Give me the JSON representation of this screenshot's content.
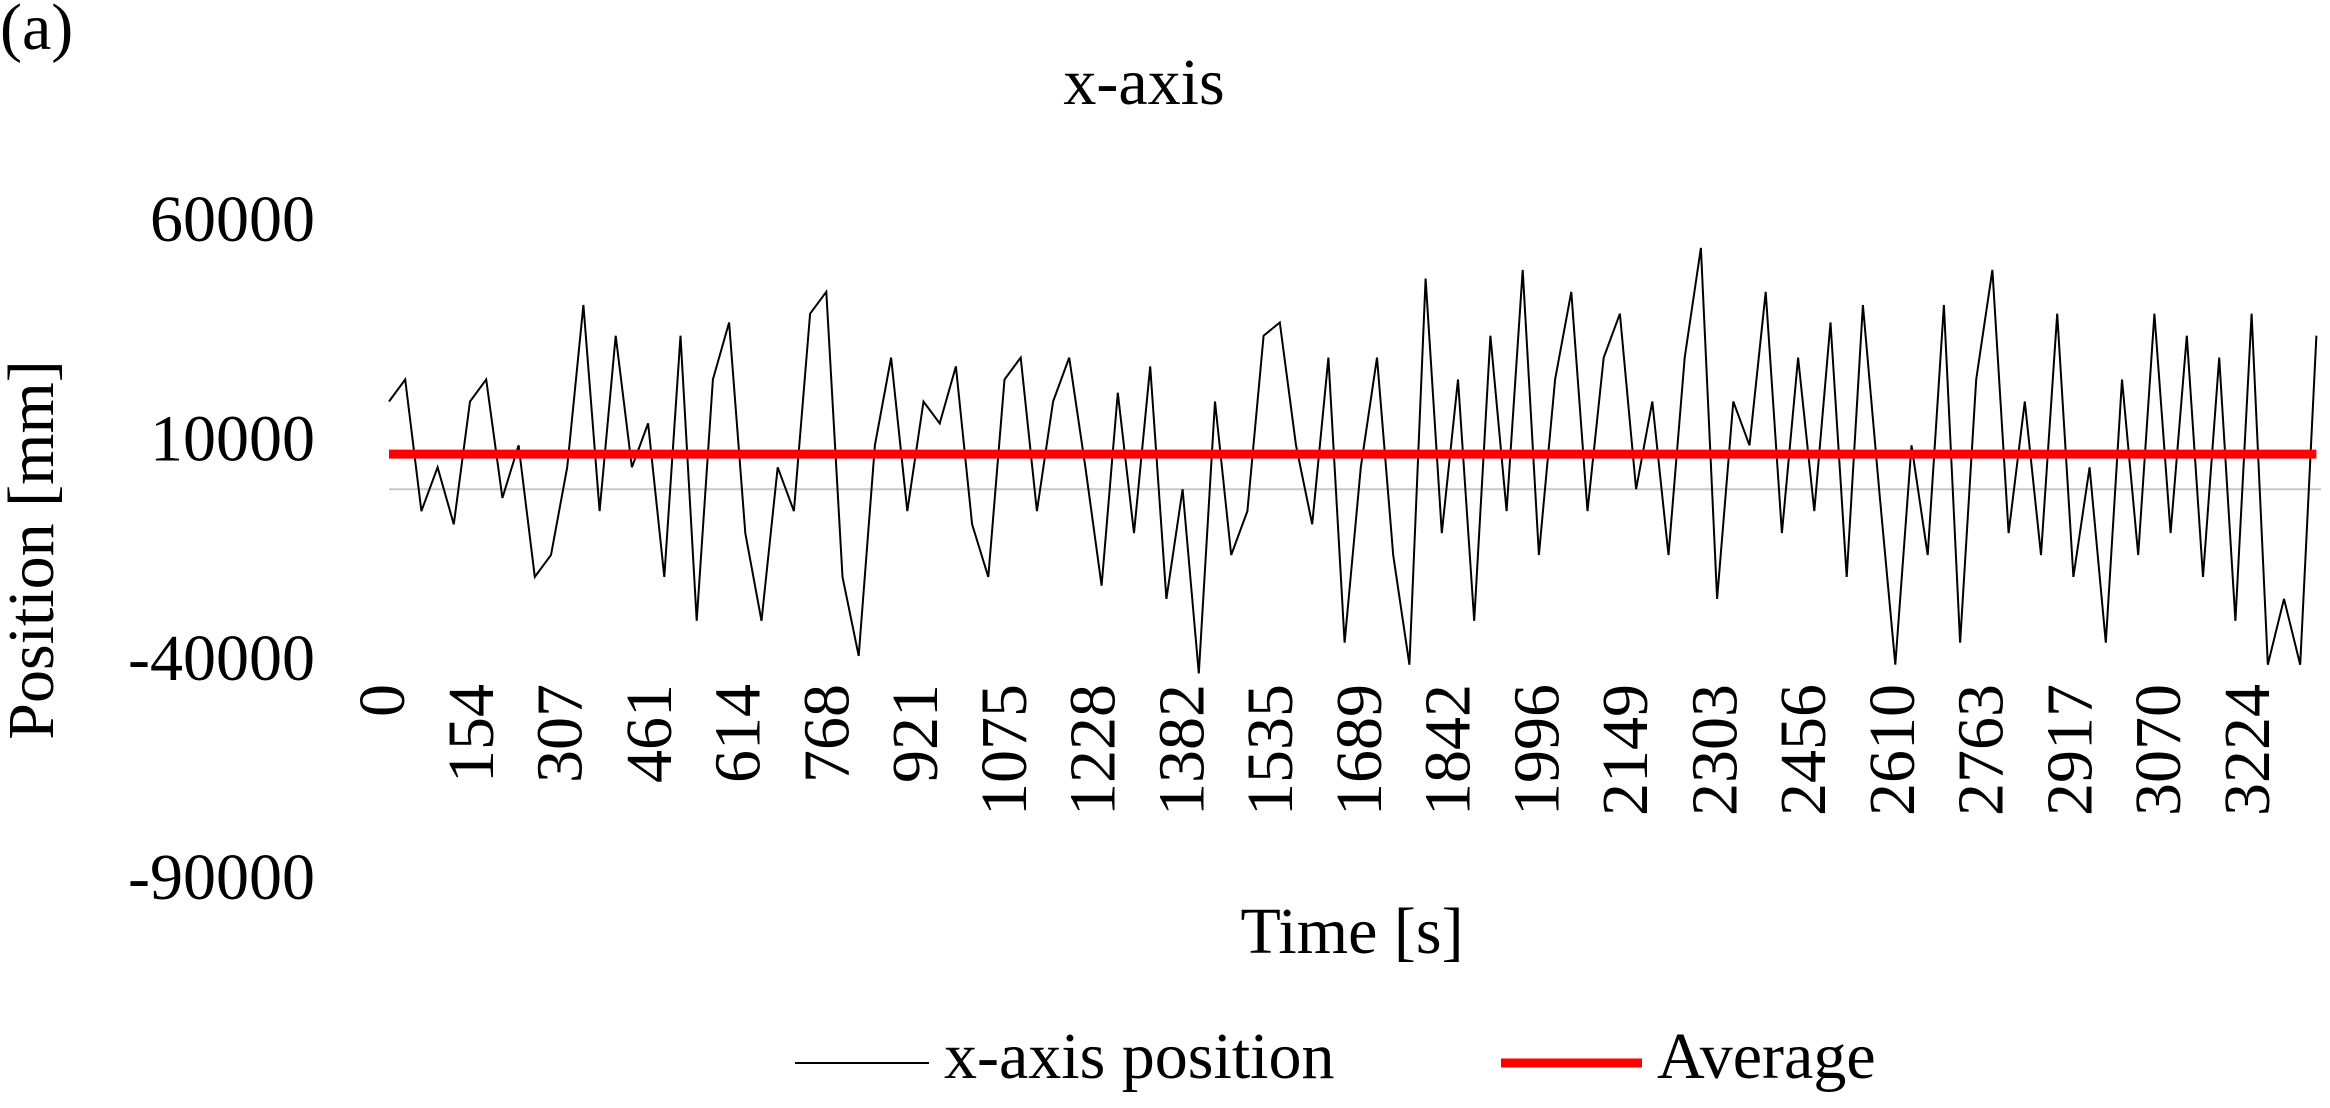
{
  "chart_data": {
    "type": "line",
    "panel_label": "(a)",
    "title": "x-axis",
    "xlabel": "Time [s]",
    "ylabel": "Position [mm]",
    "x": [
      0,
      28,
      56,
      84,
      112,
      140,
      168,
      196,
      224,
      252,
      280,
      308,
      336,
      364,
      392,
      420,
      448,
      476,
      504,
      532,
      560,
      588,
      616,
      644,
      672,
      700,
      728,
      756,
      784,
      812,
      840,
      868,
      896,
      924,
      952,
      980,
      1008,
      1036,
      1064,
      1092,
      1120,
      1148,
      1176,
      1204,
      1232,
      1260,
      1288,
      1316,
      1344,
      1372,
      1400,
      1428,
      1456,
      1484,
      1512,
      1540,
      1568,
      1596,
      1624,
      1652,
      1680,
      1708,
      1736,
      1764,
      1792,
      1820,
      1848,
      1876,
      1904,
      1932,
      1960,
      1988,
      2016,
      2044,
      2072,
      2100,
      2128,
      2156,
      2184,
      2212,
      2240,
      2268,
      2296,
      2324,
      2352,
      2380,
      2408,
      2436,
      2464,
      2492,
      2520,
      2548,
      2576,
      2604,
      2632,
      2660,
      2688,
      2716,
      2744,
      2772,
      2800,
      2828,
      2856,
      2884,
      2912,
      2940,
      2968,
      2996,
      3024,
      3052,
      3080,
      3108,
      3136,
      3164,
      3192,
      3220,
      3248,
      3276,
      3304,
      3332
    ],
    "series": [
      {
        "name": "x-axis position",
        "color": "#000000",
        "values": [
          20000,
          25000,
          -5000,
          5000,
          -8000,
          20000,
          25000,
          -2000,
          10000,
          -20000,
          -15000,
          5000,
          42000,
          -5000,
          35000,
          5000,
          15000,
          -20000,
          35000,
          -30000,
          25000,
          38000,
          -10000,
          -30000,
          5000,
          -5000,
          40000,
          45000,
          -20000,
          -38000,
          10000,
          30000,
          -5000,
          20000,
          15000,
          28000,
          -8000,
          -20000,
          25000,
          30000,
          -5000,
          20000,
          30000,
          5000,
          -22000,
          22000,
          -10000,
          28000,
          -25000,
          0,
          -42000,
          20000,
          -15000,
          -5000,
          35000,
          38000,
          10000,
          -8000,
          30000,
          -35000,
          5000,
          30000,
          -15000,
          -40000,
          48000,
          -10000,
          25000,
          -30000,
          35000,
          -5000,
          50000,
          -15000,
          25000,
          45000,
          -5000,
          30000,
          40000,
          0,
          20000,
          -15000,
          30000,
          55000,
          -25000,
          20000,
          10000,
          45000,
          -10000,
          30000,
          -5000,
          38000,
          -20000,
          42000,
          0,
          -40000,
          10000,
          -15000,
          42000,
          -35000,
          25000,
          50000,
          -10000,
          20000,
          -15000,
          40000,
          -20000,
          5000,
          -35000,
          25000,
          -15000,
          40000,
          -10000,
          35000,
          -20000,
          30000,
          -30000,
          40000,
          -40000,
          -25000,
          -40000,
          35000
        ]
      },
      {
        "name": "Average",
        "color": "#ff0000",
        "x": [
          0,
          3332
        ],
        "values": [
          8000,
          8000
        ]
      }
    ],
    "xlim": [
      0,
      3340
    ],
    "xticks": [
      0,
      154,
      307,
      461,
      614,
      768,
      921,
      1075,
      1228,
      1382,
      1535,
      1689,
      1842,
      1996,
      2149,
      2303,
      2456,
      2610,
      2763,
      2917,
      3070,
      3224
    ],
    "ylim": [
      -90000,
      60000
    ],
    "yticks": [
      -90000,
      -40000,
      10000,
      60000
    ]
  }
}
